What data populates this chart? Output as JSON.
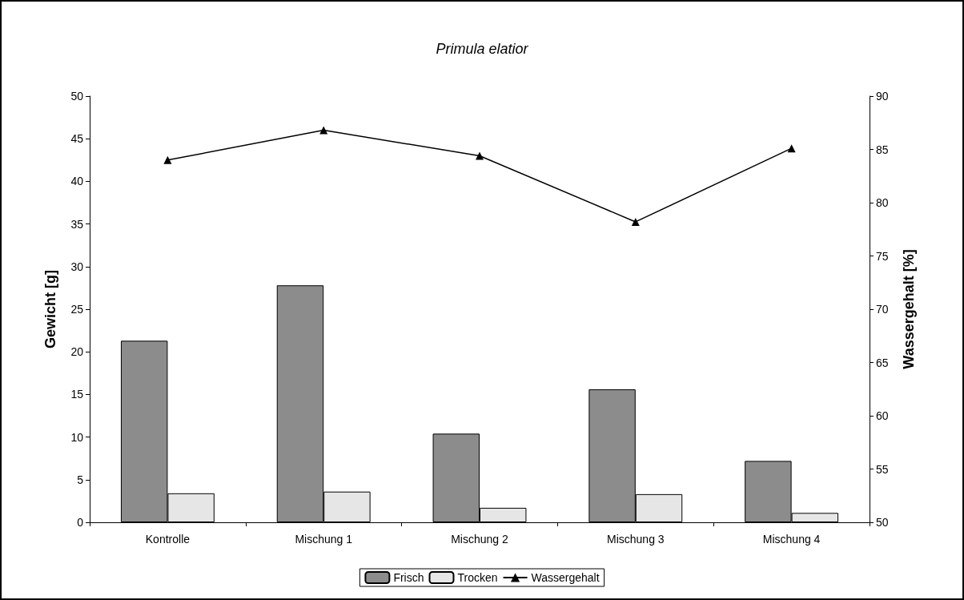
{
  "chart_data": {
    "type": "bar",
    "title": "Primula elatior",
    "ylabel": "Gewicht [g]",
    "y2label": "Wassergehalt [%]",
    "categories": [
      "Kontrolle",
      "Mischung 1",
      "Mischung 2",
      "Mischung 3",
      "Mischung 4"
    ],
    "series": [
      {
        "name": "Frisch",
        "color": "#8c8c8c",
        "values": [
          21.3,
          27.8,
          10.4,
          15.6,
          7.2
        ]
      },
      {
        "name": "Trocken",
        "color": "#e6e6e6",
        "values": [
          3.4,
          3.6,
          1.7,
          3.3,
          1.1
        ]
      },
      {
        "name": "Wassergehalt",
        "type": "line",
        "axis": "y2",
        "color": "#000000",
        "values": [
          84.0,
          86.8,
          84.4,
          78.2,
          85.1
        ]
      }
    ],
    "ylim": [
      0,
      50
    ],
    "yticks": [
      0,
      5,
      10,
      15,
      20,
      25,
      30,
      35,
      40,
      45,
      50
    ],
    "y2lim": [
      50,
      90
    ],
    "y2ticks": [
      50,
      55,
      60,
      65,
      70,
      75,
      80,
      85,
      90
    ],
    "legend": "bottom",
    "marker": "triangle",
    "line_style": "solid",
    "grid": false
  }
}
